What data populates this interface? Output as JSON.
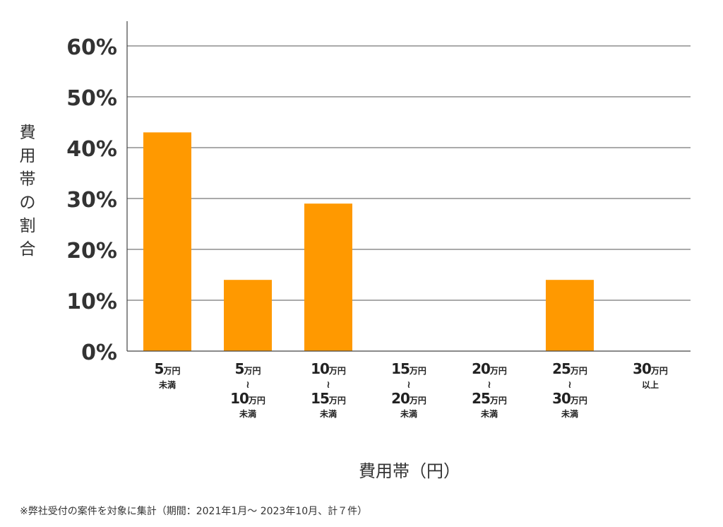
{
  "chart_data": {
    "type": "bar",
    "categories": [
      {
        "l1": "5",
        "u1": "万円",
        "sub": "未満"
      },
      {
        "l1": "5",
        "u1": "万円",
        "tilde": "≀",
        "l2": "10",
        "u2": "万円",
        "sub": "未満"
      },
      {
        "l1": "10",
        "u1": "万円",
        "tilde": "≀",
        "l2": "15",
        "u2": "万円",
        "sub": "未満"
      },
      {
        "l1": "15",
        "u1": "万円",
        "tilde": "≀",
        "l2": "20",
        "u2": "万円",
        "sub": "未満"
      },
      {
        "l1": "20",
        "u1": "万円",
        "tilde": "≀",
        "l2": "25",
        "u2": "万円",
        "sub": "未満"
      },
      {
        "l1": "25",
        "u1": "万円",
        "tilde": "≀",
        "l2": "30",
        "u2": "万円",
        "sub": "未満"
      },
      {
        "l1": "30",
        "u1": "万円",
        "sub": "以上"
      }
    ],
    "values": [
      43,
      14,
      29,
      0,
      0,
      14,
      0
    ],
    "ylim": [
      0,
      60
    ],
    "yticks": [
      0,
      10,
      20,
      30,
      40,
      50,
      60
    ],
    "ytick_labels": [
      "0%",
      "10%",
      "20%",
      "30%",
      "40%",
      "50%",
      "60%"
    ],
    "ylabel": "費用帯の割合",
    "xlabel": "費用帯（円）",
    "grid": true,
    "bar_color": "#FF9900"
  },
  "footnote": "※弊社受付の案件を対象に集計（期間：2021年1月～ 2023年10月、計７件）"
}
